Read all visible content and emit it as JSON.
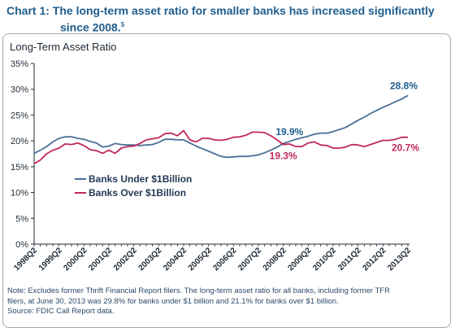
{
  "title_line1": "Chart 1: The long-term asset ratio for smaller banks has increased significantly",
  "title_line2": "since 2008.",
  "title_footnote": "5",
  "chart_data": {
    "type": "line",
    "ylabel": "Long-Term Asset Ratio",
    "ylim": [
      0,
      35
    ],
    "yticks": [
      "0%",
      "5%",
      "10%",
      "15%",
      "20%",
      "25%",
      "30%",
      "35%"
    ],
    "grid": false,
    "legend_position": "left-middle",
    "x_tick_labels": [
      "1998Q2",
      "1999Q2",
      "2000Q2",
      "2001Q2",
      "2002Q2",
      "2003Q2",
      "2004Q2",
      "2005Q2",
      "2006Q2",
      "2007Q2",
      "2008Q2",
      "2009Q2",
      "2010Q2",
      "2011Q2",
      "2012Q2",
      "2013Q2"
    ],
    "x": [
      "1998Q2",
      "1998Q3",
      "1998Q4",
      "1999Q1",
      "1999Q2",
      "1999Q3",
      "1999Q4",
      "2000Q1",
      "2000Q2",
      "2000Q3",
      "2000Q4",
      "2001Q1",
      "2001Q2",
      "2001Q3",
      "2001Q4",
      "2002Q1",
      "2002Q2",
      "2002Q3",
      "2002Q4",
      "2003Q1",
      "2003Q2",
      "2003Q3",
      "2003Q4",
      "2004Q1",
      "2004Q2",
      "2004Q3",
      "2004Q4",
      "2005Q1",
      "2005Q2",
      "2005Q3",
      "2005Q4",
      "2006Q1",
      "2006Q2",
      "2006Q3",
      "2006Q4",
      "2007Q1",
      "2007Q2",
      "2007Q3",
      "2007Q4",
      "2008Q1",
      "2008Q2",
      "2008Q3",
      "2008Q4",
      "2009Q1",
      "2009Q2",
      "2009Q3",
      "2009Q4",
      "2010Q1",
      "2010Q2",
      "2010Q3",
      "2010Q4",
      "2011Q1",
      "2011Q2",
      "2011Q3",
      "2011Q4",
      "2012Q1",
      "2012Q2",
      "2012Q3",
      "2012Q4",
      "2013Q1",
      "2013Q2"
    ],
    "series": [
      {
        "name": "Banks Under $1Billion",
        "color": "#4a6f96",
        "values": [
          17.6,
          18.2,
          18.9,
          19.8,
          20.5,
          20.8,
          20.8,
          20.5,
          20.3,
          19.9,
          19.6,
          18.8,
          19.0,
          19.5,
          19.3,
          19.2,
          19.2,
          19.1,
          19.2,
          19.3,
          19.7,
          20.3,
          20.3,
          20.2,
          20.2,
          19.6,
          19.0,
          18.5,
          18.0,
          17.5,
          17.0,
          16.8,
          16.9,
          17.0,
          17.0,
          17.1,
          17.3,
          17.7,
          18.2,
          18.8,
          19.5,
          19.9,
          20.3,
          20.6,
          20.9,
          21.3,
          21.5,
          21.5,
          21.8,
          22.2,
          22.6,
          23.3,
          24.0,
          24.6,
          25.3,
          25.9,
          26.5,
          27.0,
          27.6,
          28.1,
          28.8
        ]
      },
      {
        "name": "Banks Over $1Billion",
        "color": "#c0285a",
        "values": [
          15.6,
          16.3,
          17.5,
          18.2,
          18.6,
          19.4,
          19.3,
          19.6,
          19.1,
          18.3,
          18.1,
          17.6,
          18.2,
          17.6,
          18.6,
          18.9,
          19.0,
          19.5,
          20.2,
          20.4,
          20.6,
          21.4,
          21.5,
          21.0,
          22.0,
          20.2,
          19.8,
          20.5,
          20.5,
          20.2,
          20.1,
          20.3,
          20.7,
          20.8,
          21.1,
          21.7,
          21.7,
          21.6,
          21.0,
          20.2,
          19.3,
          19.4,
          18.9,
          18.9,
          19.6,
          19.8,
          19.2,
          19.1,
          18.6,
          18.6,
          18.8,
          19.3,
          19.2,
          18.9,
          19.3,
          19.7,
          20.1,
          20.1,
          20.3,
          20.7,
          20.7
        ]
      }
    ],
    "annotations": [
      {
        "text": "28.8%",
        "series": 0,
        "color": "#1f5e8e"
      },
      {
        "text": "19.9%",
        "series": 0,
        "color": "#1f5e8e"
      },
      {
        "text": "19.3%",
        "series": 1,
        "color": "#c0285a"
      },
      {
        "text": "20.7%",
        "series": 1,
        "color": "#c0285a"
      }
    ]
  },
  "note": {
    "line1": "Note: Excludes former Thrift Financial Report filers.  The long-term asset ratio for all banks, including former TFR",
    "line2": "filers, at June 30, 2013 was 29.8% for banks under $1 billion and  21.1% for banks over $1 billion.",
    "line3": "Source: FDIC Call Report data."
  }
}
